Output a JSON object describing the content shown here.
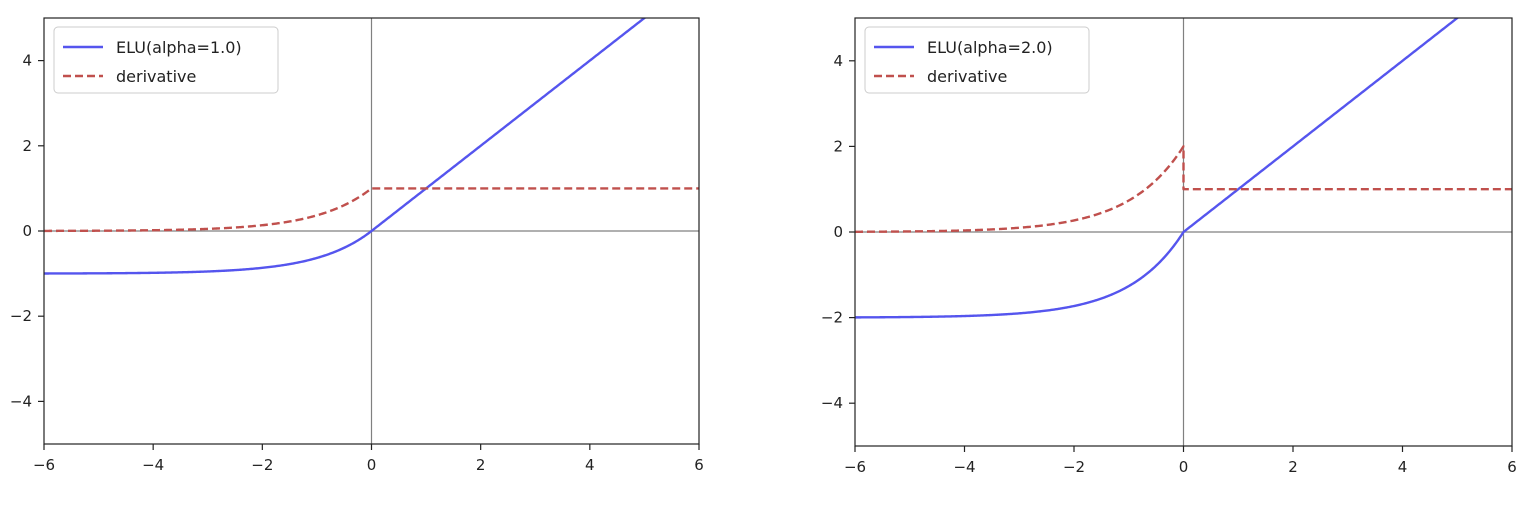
{
  "chart_data": [
    {
      "type": "line",
      "title": "",
      "xlabel": "",
      "ylabel": "",
      "xlim": [
        -6,
        6
      ],
      "ylim": [
        -5,
        5
      ],
      "x_ticks": [
        -6,
        -4,
        -2,
        0,
        2,
        4,
        6
      ],
      "y_ticks": [
        -4,
        -2,
        0,
        2,
        4
      ],
      "x_tick_labels": [
        "−6",
        "−4",
        "−2",
        "0",
        "2",
        "4",
        "6"
      ],
      "y_tick_labels": [
        "−4",
        "−2",
        "0",
        "2",
        "4"
      ],
      "grid": false,
      "reference_lines": {
        "x": 0,
        "y": 0
      },
      "legend": "top-left",
      "alpha": 1.0,
      "x": [
        -6,
        -5,
        -4,
        -3,
        -2,
        -1.5,
        -1,
        -0.5,
        0,
        1,
        2,
        3,
        4,
        5,
        6
      ],
      "series": [
        {
          "name": "ELU(alpha=1.0)",
          "style": "solid",
          "color": "#5555ee",
          "values": [
            -0.998,
            -0.993,
            -0.982,
            -0.95,
            -0.865,
            -0.777,
            -0.632,
            -0.393,
            0,
            1,
            2,
            3,
            4,
            5,
            6
          ]
        },
        {
          "name": "derivative",
          "style": "dashed",
          "color": "#c0504d",
          "values": [
            0.002,
            0.007,
            0.018,
            0.05,
            0.135,
            0.223,
            0.368,
            0.607,
            1,
            1,
            1,
            1,
            1,
            1,
            1
          ]
        }
      ]
    },
    {
      "type": "line",
      "title": "",
      "xlabel": "",
      "ylabel": "",
      "xlim": [
        -6,
        6
      ],
      "ylim": [
        -5,
        5
      ],
      "x_ticks": [
        -6,
        -4,
        -2,
        0,
        2,
        4,
        6
      ],
      "y_ticks": [
        -4,
        -2,
        0,
        2,
        4
      ],
      "x_tick_labels": [
        "−6",
        "−4",
        "−2",
        "0",
        "2",
        "4",
        "6"
      ],
      "y_tick_labels": [
        "−4",
        "−2",
        "0",
        "2",
        "4"
      ],
      "grid": false,
      "reference_lines": {
        "x": 0,
        "y": 0
      },
      "legend": "top-left",
      "alpha": 2.0,
      "x": [
        -6,
        -5,
        -4,
        -3,
        -2,
        -1.5,
        -1,
        -0.5,
        0,
        1,
        2,
        3,
        4,
        5,
        6
      ],
      "series": [
        {
          "name": "ELU(alpha=2.0)",
          "style": "solid",
          "color": "#5555ee",
          "values": [
            -1.995,
            -1.987,
            -1.963,
            -1.9,
            -1.729,
            -1.554,
            -1.264,
            -0.787,
            0,
            1,
            2,
            3,
            4,
            5,
            6
          ]
        },
        {
          "name": "derivative",
          "style": "dashed",
          "color": "#c0504d",
          "values": [
            0.005,
            0.013,
            0.037,
            0.1,
            0.271,
            0.446,
            0.736,
            1.213,
            2,
            1,
            1,
            1,
            1,
            1,
            1
          ]
        }
      ]
    }
  ]
}
